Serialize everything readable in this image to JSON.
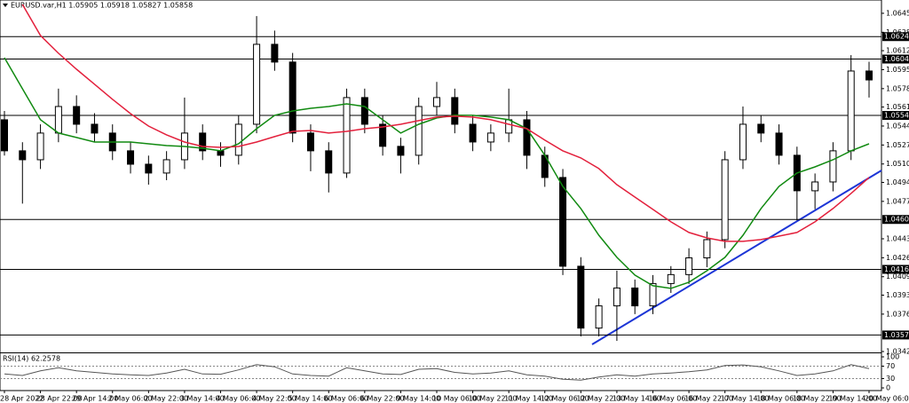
{
  "chart_data": {
    "type": "candlestick",
    "title": "EURUSD.var,H1 1.05905 1.05918 1.05827 1.05858",
    "categories": [
      "28 Apr 2022",
      null,
      "28 Apr 22:00",
      null,
      "29 Apr 14:00",
      null,
      "2 May 06:00",
      null,
      "2 May 22:00",
      null,
      "3 May 14:00",
      null,
      "4 May 06:00",
      null,
      "4 May 22:00",
      null,
      "5 May 14:00",
      null,
      "6 May 06:00",
      null,
      "6 May 22:00",
      null,
      "9 May 14:00",
      null,
      "10 May 06:00",
      null,
      "10 May 22:00",
      null,
      "11 May 14:00",
      null,
      "12 May 06:00",
      null,
      "12 May 22:00",
      null,
      "13 May 14:00",
      null,
      "16 May 06:00",
      null,
      "16 May 22:00",
      null,
      "17 May 14:00",
      null,
      "18 May 06:00",
      null,
      "18 May 22:00",
      null,
      "19 May 14:00",
      null,
      "20 May 06:00"
    ],
    "open": [
      1.05501,
      1.05223,
      1.05143,
      1.05382,
      1.0562,
      1.05461,
      1.05382,
      1.05223,
      1.05103,
      1.05024,
      1.05143,
      1.05382,
      1.05223,
      1.05183,
      1.05461,
      1.06177,
      1.06018,
      1.05382,
      1.05223,
      1.05024,
      1.057,
      1.05461,
      1.05263,
      1.05183,
      1.0562,
      1.057,
      1.05461,
      1.05302,
      1.05382,
      1.05501,
      1.05183,
      1.04984,
      1.04189,
      1.03635,
      1.03834,
      1.03994,
      1.03834,
      1.04034,
      1.04114,
      1.04264,
      1.04427,
      1.05143,
      1.05461,
      1.05382,
      1.05183,
      1.04865,
      1.04944,
      1.05223,
      1.05938
    ],
    "high": [
      1.0558,
      1.053,
      1.0546,
      1.0578,
      1.0572,
      1.0556,
      1.0546,
      1.053,
      1.0518,
      1.0522,
      1.057,
      1.0546,
      1.053,
      1.0554,
      1.0643,
      1.063,
      1.061,
      1.0546,
      1.053,
      1.0578,
      1.0578,
      1.0554,
      1.0534,
      1.057,
      1.0584,
      1.0578,
      1.0554,
      1.0546,
      1.0578,
      1.0558,
      1.0526,
      1.0506,
      1.0427,
      1.039,
      1.0415,
      1.0407,
      1.0411,
      1.0419,
      1.0435,
      1.045,
      1.0522,
      1.0562,
      1.0554,
      1.0546,
      1.0526,
      1.0502,
      1.053,
      1.0608,
      1.0602
    ],
    "low": [
      1.0518,
      1.0475,
      1.0506,
      1.053,
      1.0538,
      1.053,
      1.0514,
      1.0502,
      1.0492,
      1.0496,
      1.0506,
      1.0514,
      1.0508,
      1.051,
      1.0538,
      1.0594,
      1.053,
      1.0504,
      1.0485,
      1.0498,
      1.0538,
      1.0518,
      1.0502,
      1.051,
      1.0554,
      1.0538,
      1.0522,
      1.0522,
      1.053,
      1.0506,
      1.049,
      1.0411,
      1.0356,
      1.0356,
      1.0352,
      1.0376,
      1.0376,
      1.0395,
      1.0403,
      1.0418,
      1.0435,
      1.0506,
      1.053,
      1.051,
      1.046,
      1.047,
      1.0486,
      1.0514,
      1.057
    ],
    "close": [
      1.05223,
      1.05143,
      1.05382,
      1.0562,
      1.05461,
      1.05382,
      1.05223,
      1.05103,
      1.05024,
      1.05143,
      1.05382,
      1.05223,
      1.05183,
      1.05461,
      1.06177,
      1.06018,
      1.05382,
      1.05223,
      1.05024,
      1.057,
      1.05461,
      1.05263,
      1.05183,
      1.0562,
      1.057,
      1.05461,
      1.05302,
      1.05382,
      1.05501,
      1.05183,
      1.04984,
      1.04189,
      1.03635,
      1.03834,
      1.03994,
      1.03834,
      1.04034,
      1.04114,
      1.04264,
      1.04427,
      1.05143,
      1.05461,
      1.05382,
      1.05183,
      1.04865,
      1.04944,
      1.05223,
      1.05938,
      1.05858
    ],
    "ylim": [
      1.03425,
      1.06574
    ],
    "yticks": [
      1.06455,
      1.06285,
      {
        "value": 1.0612,
        "label": "1.06120"
      },
      {
        "value": 1.0595,
        "label": "1.05950"
      },
      {
        "value": 1.0578,
        "label": "1.05780"
      },
      1.05615,
      1.05445,
      1.05275,
      1.05105,
      {
        "value": 1.0494,
        "label": "1.04940"
      },
      {
        "value": 1.0477,
        "label": "1.04770"
      },
      1.04435,
      1.04265,
      1.04095,
      {
        "value": 1.0393,
        "label": "1.03930"
      },
      {
        "value": 1.0376,
        "label": "1.03760"
      },
      1.03425
    ],
    "levels": [
      1.06246,
      1.06045,
      {
        "value": 1.0554,
        "label": "1.05540"
      },
      1.04608,
      1.04161,
      1.03573
    ],
    "moving_averages": [
      {
        "color": "#118a11",
        "values": [
          1.06057,
          1.05779,
          1.05501,
          1.05382,
          1.05342,
          1.05302,
          1.05302,
          1.05302,
          1.05286,
          1.0527,
          1.05262,
          1.05246,
          1.05223,
          1.05286,
          1.05421,
          1.05541,
          1.0558,
          1.05604,
          1.0562,
          1.05644,
          1.0562,
          1.05501,
          1.05382,
          1.05461,
          1.05517,
          1.05541,
          1.05541,
          1.05525,
          1.05501,
          1.05421,
          1.05183,
          1.04904,
          1.04706,
          1.04467,
          1.04269,
          1.0411,
          1.04014,
          1.0399,
          1.04046,
          1.04149,
          1.04269,
          1.04467,
          1.04706,
          1.04904,
          1.05024,
          1.05079,
          1.05143,
          1.05223,
          1.05286
        ]
      },
      {
        "color": "#e3203c",
        "values": [
          null,
          1.06534,
          1.06256,
          1.06097,
          1.05954,
          1.05819,
          1.05684,
          1.05556,
          1.05445,
          1.05366,
          1.05302,
          1.05262,
          1.05254,
          1.05262,
          1.05302,
          1.0535,
          1.05397,
          1.05405,
          1.05382,
          1.05397,
          1.05421,
          1.05437,
          1.05461,
          1.05493,
          1.05525,
          1.05533,
          1.05525,
          1.05501,
          1.05461,
          1.05421,
          1.05318,
          1.05223,
          1.05159,
          1.05064,
          1.0492,
          1.04809,
          1.04698,
          1.04587,
          1.04491,
          1.04443,
          1.04412,
          1.04412,
          1.04428,
          1.04459,
          1.04491,
          1.04587,
          1.04706,
          1.04841,
          1.04984
        ]
      }
    ],
    "rsi": {
      "label": "RSI(14) 62.2578",
      "color": "#555555",
      "ylim": [
        0,
        100
      ],
      "yticks": [
        0,
        30,
        70,
        100
      ],
      "values": [
        45,
        40,
        55,
        65,
        55,
        50,
        45,
        42,
        40,
        48,
        60,
        45,
        44,
        58,
        75,
        68,
        45,
        40,
        38,
        65,
        55,
        45,
        43,
        60,
        62,
        50,
        45,
        48,
        55,
        42,
        38,
        28,
        25,
        35,
        42,
        38,
        45,
        48,
        52,
        58,
        72,
        74,
        68,
        55,
        40,
        45,
        55,
        75,
        62.2578
      ]
    }
  }
}
